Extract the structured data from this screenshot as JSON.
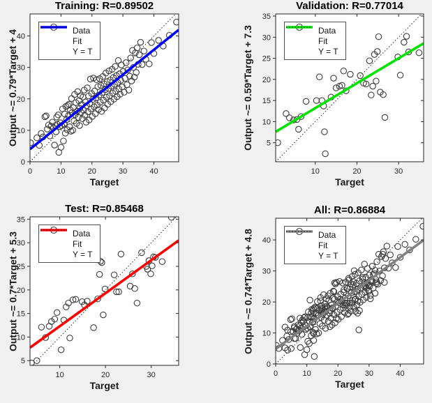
{
  "figure": {
    "background_color": "#f0f0f0",
    "plot_background_color": "#ffffff",
    "axis_color": "#262626",
    "marker_color": "#3c3c3c",
    "identity_line_color": "#1a1a1a"
  },
  "legend": {
    "data_label": "Data",
    "fit_label": "Fit",
    "identity_label": "Y = T"
  },
  "chart_data": {
    "type": "scatter",
    "layout": "2x2 regression panels",
    "panels": [
      {
        "id": "training",
        "title": "Training: R=0.89502",
        "r": 0.89502,
        "xlabel": "Target",
        "ylabel": "Output ~= 0.79*Target + 4",
        "fit": {
          "slope": 0.79,
          "intercept": 4,
          "color": "#0000ff"
        },
        "xlim": [
          0,
          48
        ],
        "ylim": [
          0,
          47
        ],
        "xticks": [
          0,
          10,
          20,
          30,
          40
        ],
        "yticks": [
          0,
          10,
          20,
          30,
          40
        ],
        "points": [
          [
            0.2,
            6.0
          ],
          [
            2.2,
            7.6
          ],
          [
            3.0,
            5.2
          ],
          [
            3.6,
            9.0
          ],
          [
            4.2,
            7.9
          ],
          [
            4.8,
            14.3
          ],
          [
            5.2,
            14.6
          ],
          [
            5.6,
            10.4
          ],
          [
            6.0,
            11.7
          ],
          [
            6.4,
            8.2
          ],
          [
            6.8,
            11.3
          ],
          [
            7.2,
            12.6
          ],
          [
            7.6,
            10.8
          ],
          [
            7.9,
            5.3
          ],
          [
            8.2,
            11.5
          ],
          [
            8.4,
            9.5
          ],
          [
            8.6,
            14.2
          ],
          [
            8.9,
            11.9
          ],
          [
            9.1,
            14.9
          ],
          [
            9.3,
            3.0
          ],
          [
            9.6,
            11.2
          ],
          [
            9.8,
            12.4
          ],
          [
            10.0,
            4.6
          ],
          [
            10.2,
            11.5
          ],
          [
            10.5,
            16.8
          ],
          [
            10.8,
            6.6
          ],
          [
            11.0,
            12.0
          ],
          [
            11.2,
            15.2
          ],
          [
            11.4,
            9.1
          ],
          [
            11.6,
            17.6
          ],
          [
            11.8,
            13.4
          ],
          [
            12.0,
            10.2
          ],
          [
            12.2,
            17.9
          ],
          [
            12.4,
            14.6
          ],
          [
            12.6,
            18.3
          ],
          [
            12.8,
            11.1
          ],
          [
            13.0,
            16.5
          ],
          [
            13.2,
            9.7
          ],
          [
            13.4,
            20.1
          ],
          [
            13.6,
            15.6
          ],
          [
            13.8,
            10.0
          ],
          [
            14.0,
            17.2
          ],
          [
            14.2,
            13.0
          ],
          [
            14.4,
            21.4
          ],
          [
            14.6,
            15.0
          ],
          [
            14.8,
            18.8
          ],
          [
            15.0,
            12.2
          ],
          [
            15.2,
            16.1
          ],
          [
            15.4,
            22.3
          ],
          [
            15.6,
            14.1
          ],
          [
            15.8,
            19.4
          ],
          [
            16.0,
            11.5
          ],
          [
            16.1,
            17.0
          ],
          [
            16.3,
            21.0
          ],
          [
            16.5,
            15.7
          ],
          [
            16.7,
            18.2
          ],
          [
            16.9,
            13.7
          ],
          [
            17.1,
            20.6
          ],
          [
            17.3,
            16.4
          ],
          [
            17.5,
            22.8
          ],
          [
            17.7,
            14.8
          ],
          [
            17.9,
            19.0
          ],
          [
            18.1,
            12.6
          ],
          [
            18.3,
            17.8
          ],
          [
            18.5,
            23.5
          ],
          [
            18.7,
            15.9
          ],
          [
            18.9,
            20.9
          ],
          [
            19.1,
            13.3
          ],
          [
            19.3,
            18.5
          ],
          [
            19.5,
            26.3
          ],
          [
            19.7,
            16.8
          ],
          [
            19.9,
            21.7
          ],
          [
            20.1,
            14.4
          ],
          [
            20.3,
            19.8
          ],
          [
            20.5,
            26.6
          ],
          [
            20.7,
            17.5
          ],
          [
            20.9,
            22.5
          ],
          [
            21.1,
            15.3
          ],
          [
            21.3,
            20.3
          ],
          [
            21.5,
            26.1
          ],
          [
            21.7,
            18.0
          ],
          [
            21.9,
            23.9
          ],
          [
            22.1,
            16.6
          ],
          [
            22.3,
            21.2
          ],
          [
            22.5,
            26.4
          ],
          [
            22.7,
            18.9
          ],
          [
            22.9,
            24.3
          ],
          [
            23.1,
            16.0
          ],
          [
            23.3,
            22.0
          ],
          [
            23.5,
            27.1
          ],
          [
            23.7,
            19.6
          ],
          [
            23.9,
            24.8
          ],
          [
            24.1,
            17.1
          ],
          [
            24.3,
            22.9
          ],
          [
            24.5,
            28.2
          ],
          [
            24.7,
            20.5
          ],
          [
            24.9,
            25.5
          ],
          [
            25.1,
            18.3
          ],
          [
            25.3,
            23.3
          ],
          [
            25.5,
            28.9
          ],
          [
            25.7,
            21.0
          ],
          [
            25.9,
            26.0
          ],
          [
            26.1,
            19.1
          ],
          [
            26.3,
            24.0
          ],
          [
            26.5,
            29.4
          ],
          [
            26.7,
            21.8
          ],
          [
            26.9,
            26.8
          ],
          [
            27.1,
            19.9
          ],
          [
            27.3,
            24.6
          ],
          [
            27.5,
            30.3
          ],
          [
            27.7,
            22.4
          ],
          [
            27.9,
            27.4
          ],
          [
            28.1,
            20.7
          ],
          [
            28.3,
            25.2
          ],
          [
            28.5,
            32.2
          ],
          [
            28.7,
            23.1
          ],
          [
            28.9,
            28.0
          ],
          [
            29.1,
            21.5
          ],
          [
            29.3,
            25.9
          ],
          [
            29.5,
            30.8
          ],
          [
            29.8,
            23.8
          ],
          [
            30.1,
            28.7
          ],
          [
            30.4,
            22.1
          ],
          [
            30.7,
            26.5
          ],
          [
            31.0,
            31.5
          ],
          [
            31.3,
            24.5
          ],
          [
            31.6,
            29.2
          ],
          [
            31.9,
            22.8
          ],
          [
            32.2,
            27.2
          ],
          [
            32.5,
            33.0
          ],
          [
            32.8,
            25.7
          ],
          [
            33.1,
            35.4
          ],
          [
            33.4,
            30.0
          ],
          [
            33.7,
            26.9
          ],
          [
            34.0,
            34.6
          ],
          [
            34.3,
            28.4
          ],
          [
            34.6,
            36.2
          ],
          [
            34.9,
            31.0
          ],
          [
            35.3,
            34.0
          ],
          [
            35.7,
            38.0
          ],
          [
            36.2,
            30.9
          ],
          [
            36.8,
            35.2
          ],
          [
            37.4,
            32.6
          ],
          [
            38.5,
            31.1
          ],
          [
            39.2,
            37.9
          ],
          [
            40.0,
            34.4
          ],
          [
            41.5,
            38.6
          ],
          [
            43.0,
            36.8
          ],
          [
            45.0,
            40.2
          ],
          [
            47.3,
            44.4
          ]
        ]
      },
      {
        "id": "validation",
        "title": "Validation: R=0.77014",
        "r": 0.77014,
        "xlabel": "Target",
        "ylabel": "Output ~= 0.59*Target + 7.3",
        "fit": {
          "slope": 0.59,
          "intercept": 7.3,
          "color": "#00e400"
        },
        "xlim": [
          0.5,
          36
        ],
        "ylim": [
          0.5,
          35.5
        ],
        "xticks": [
          10,
          20,
          30
        ],
        "yticks": [
          5,
          10,
          15,
          20,
          25,
          30,
          35
        ],
        "points": [
          [
            1.0,
            5.0
          ],
          [
            3.0,
            11.9
          ],
          [
            3.8,
            10.9
          ],
          [
            4.8,
            10.4
          ],
          [
            5.6,
            10.5
          ],
          [
            6.0,
            8.2
          ],
          [
            6.6,
            11.2
          ],
          [
            7.8,
            14.8
          ],
          [
            10.3,
            15.0
          ],
          [
            11.0,
            20.6
          ],
          [
            11.6,
            15.0
          ],
          [
            12.0,
            13.7
          ],
          [
            12.2,
            7.6
          ],
          [
            12.4,
            2.4
          ],
          [
            13.8,
            15.8
          ],
          [
            14.4,
            20.3
          ],
          [
            15.0,
            18.0
          ],
          [
            15.8,
            18.4
          ],
          [
            16.4,
            18.6
          ],
          [
            16.8,
            22.0
          ],
          [
            17.4,
            17.3
          ],
          [
            18.4,
            21.2
          ],
          [
            20.8,
            20.9
          ],
          [
            21.6,
            19.1
          ],
          [
            22.2,
            18.9
          ],
          [
            23.0,
            24.4
          ],
          [
            23.4,
            16.3
          ],
          [
            23.8,
            18.4
          ],
          [
            24.2,
            25.9
          ],
          [
            24.6,
            19.6
          ],
          [
            24.9,
            26.6
          ],
          [
            25.2,
            30.1
          ],
          [
            25.6,
            17.0
          ],
          [
            26.3,
            16.4
          ],
          [
            26.7,
            11.0
          ],
          [
            29.8,
            25.3
          ],
          [
            30.4,
            21.0
          ],
          [
            31.3,
            28.8
          ],
          [
            31.9,
            30.2
          ],
          [
            32.4,
            26.5
          ],
          [
            34.9,
            26.3
          ]
        ]
      },
      {
        "id": "test",
        "title": "Test: R=0.85468",
        "r": 0.85468,
        "xlabel": "Target",
        "ylabel": "Output ~= 0.7*Target + 5.3",
        "fit": {
          "slope": 0.7,
          "intercept": 5.3,
          "color": "#ff0000"
        },
        "xlim": [
          3.5,
          36
        ],
        "ylim": [
          4,
          35.5
        ],
        "xticks": [
          10,
          20,
          30
        ],
        "yticks": [
          5,
          10,
          15,
          20,
          25,
          30,
          35
        ],
        "points": [
          [
            3.8,
            4.5
          ],
          [
            5.0,
            5.0
          ],
          [
            6.0,
            12.1
          ],
          [
            6.9,
            9.9
          ],
          [
            7.7,
            12.3
          ],
          [
            8.2,
            13.3
          ],
          [
            8.9,
            13.8
          ],
          [
            9.4,
            15.2
          ],
          [
            10.3,
            7.3
          ],
          [
            10.9,
            13.6
          ],
          [
            11.4,
            16.4
          ],
          [
            11.9,
            17.2
          ],
          [
            12.2,
            9.8
          ],
          [
            12.9,
            17.9
          ],
          [
            13.5,
            18.0
          ],
          [
            14.9,
            17.5
          ],
          [
            15.4,
            16.8
          ],
          [
            16.0,
            17.6
          ],
          [
            17.4,
            12.0
          ],
          [
            18.3,
            18.1
          ],
          [
            18.7,
            23.3
          ],
          [
            18.9,
            26.1
          ],
          [
            19.2,
            25.8
          ],
          [
            19.5,
            14.7
          ],
          [
            19.9,
            20.2
          ],
          [
            21.9,
            23.2
          ],
          [
            22.4,
            19.6
          ],
          [
            22.9,
            19.6
          ],
          [
            23.4,
            27.6
          ],
          [
            25.4,
            20.8
          ],
          [
            25.9,
            23.4
          ],
          [
            26.4,
            20.3
          ],
          [
            26.9,
            17.2
          ],
          [
            27.9,
            27.9
          ],
          [
            28.9,
            25.0
          ],
          [
            29.2,
            24.4
          ],
          [
            29.5,
            26.2
          ],
          [
            29.9,
            23.4
          ],
          [
            30.2,
            25.1
          ],
          [
            30.5,
            27.0
          ],
          [
            30.9,
            26.9
          ],
          [
            32.4,
            26.0
          ],
          [
            34.4,
            35.4
          ]
        ]
      },
      {
        "id": "all",
        "title": "All: R=0.86884",
        "r": 0.86884,
        "xlabel": "Target",
        "ylabel": "Output ~= 0.74*Target + 4.8",
        "fit": {
          "slope": 0.74,
          "intercept": 4.8,
          "color": "#808080"
        },
        "xlim": [
          0,
          47.5
        ],
        "ylim": [
          0,
          47
        ],
        "xticks": [
          0,
          10,
          20,
          30,
          40
        ],
        "yticks": [
          0,
          10,
          20,
          30,
          40
        ],
        "points_union_of": [
          "training",
          "validation",
          "test"
        ]
      }
    ]
  }
}
